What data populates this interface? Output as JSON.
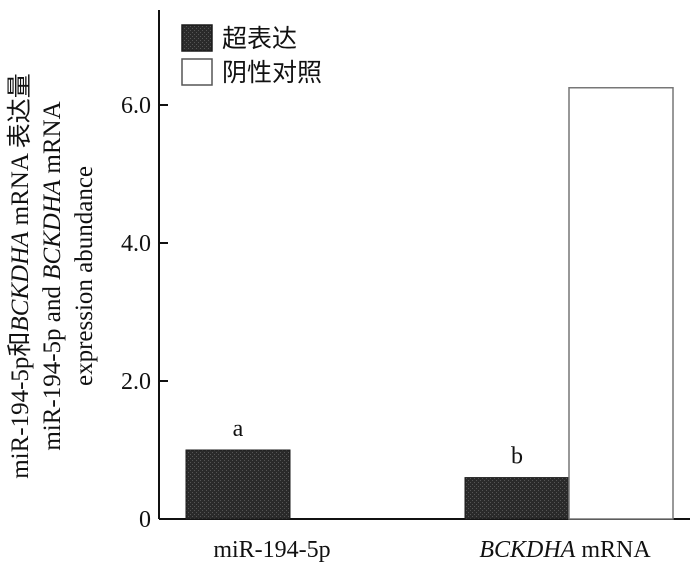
{
  "chart_data": {
    "type": "bar",
    "categories": [
      "miR-194-5p",
      "BCKDHA mRNA"
    ],
    "category_parts": [
      [
        {
          "text": "miR-194-5p",
          "italic": false
        }
      ],
      [
        {
          "text": "BCKDHA",
          "italic": true
        },
        {
          "text": " mRNA",
          "italic": false
        }
      ]
    ],
    "series": [
      {
        "name": "超表达",
        "values": [
          1.0,
          0.6
        ],
        "fill": "#2b2b2b",
        "pattern": "dark-texture"
      },
      {
        "name": "阴性对照",
        "values": [
          null,
          6.25
        ],
        "fill": "#ffffff",
        "pattern": "none"
      }
    ],
    "annotations": [
      {
        "category_index": 0,
        "series_index": 0,
        "text": "a"
      },
      {
        "category_index": 1,
        "series_index": 0,
        "text": "b"
      }
    ],
    "ylim": [
      0,
      7.3
    ],
    "yticks": [
      0,
      2.0,
      4.0,
      6.0
    ],
    "ytick_labels": [
      "0",
      "2.0",
      "4.0",
      "6.0"
    ],
    "ylabel_lines": [
      [
        {
          "text": "miR-194-5p和",
          "italic": false
        },
        {
          "text": "BCKDHA",
          "italic": true
        },
        {
          "text": " mRNA  表达量",
          "italic": false
        }
      ],
      [
        {
          "text": "miR-194-5p and ",
          "italic": false
        },
        {
          "text": "BCKDHA",
          "italic": true
        },
        {
          "text": " mRNA",
          "italic": false
        }
      ],
      [
        {
          "text": "expression abundance",
          "italic": false
        }
      ]
    ],
    "legend_position": "top-left",
    "grid": false
  }
}
